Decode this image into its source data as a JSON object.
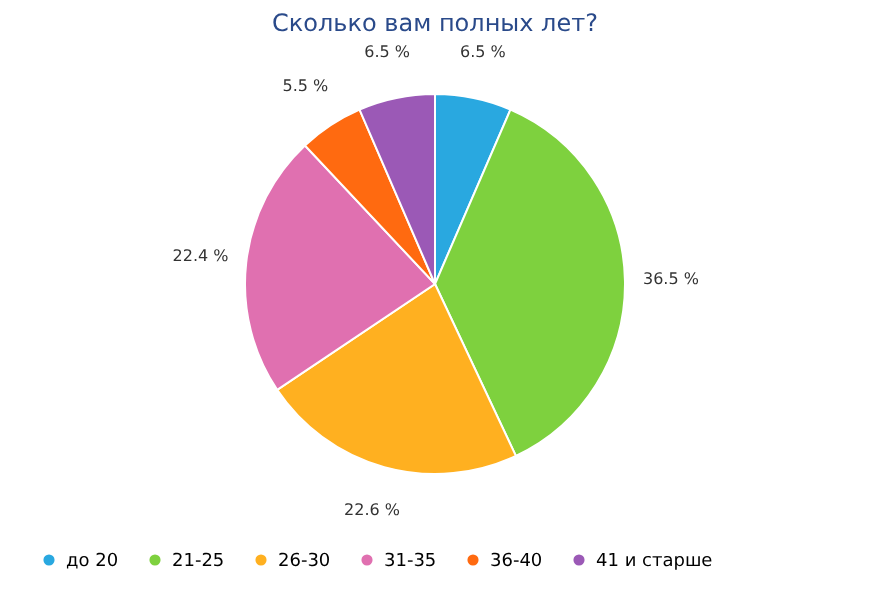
{
  "chart_data": {
    "type": "pie",
    "title": "Сколько вам полных лет?",
    "categories": [
      "до 20",
      "21-25",
      "26-30",
      "31-35",
      "36-40",
      "41 и старше"
    ],
    "values": [
      6.5,
      36.5,
      22.6,
      22.4,
      5.5,
      6.5
    ],
    "value_labels": [
      "6.5 %",
      "36.5 %",
      "22.6 %",
      "22.4 %",
      "5.5 %",
      "6.5 %"
    ],
    "colors": [
      "#29a8e0",
      "#7ed13e",
      "#ffb020",
      "#e070b0",
      "#ff6a10",
      "#9b59b6"
    ],
    "legend": "bottom"
  }
}
